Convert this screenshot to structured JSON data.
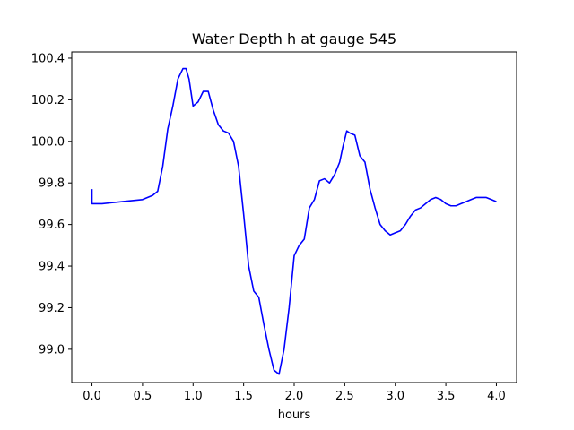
{
  "chart_data": {
    "type": "line",
    "title": "Water Depth h at gauge 545",
    "xlabel": "hours",
    "ylabel": "",
    "xlim": [
      -0.2,
      4.2
    ],
    "ylim": [
      98.84,
      100.43
    ],
    "x_ticks": [
      0.0,
      0.5,
      1.0,
      1.5,
      2.0,
      2.5,
      3.0,
      3.5,
      4.0
    ],
    "x_tick_labels": [
      "0.0",
      "0.5",
      "1.0",
      "1.5",
      "2.0",
      "2.5",
      "3.0",
      "3.5",
      "4.0"
    ],
    "y_ticks": [
      99.0,
      99.2,
      99.4,
      99.6,
      99.8,
      100.0,
      100.2,
      100.4
    ],
    "y_tick_labels": [
      "99.0",
      "99.2",
      "99.4",
      "99.6",
      "99.8",
      "100.0",
      "100.2",
      "100.4"
    ],
    "grid": false,
    "series": [
      {
        "color": "#0000ff",
        "x": [
          0.0,
          0.0,
          0.1,
          0.2,
          0.3,
          0.4,
          0.5,
          0.6,
          0.65,
          0.7,
          0.75,
          0.8,
          0.85,
          0.9,
          0.93,
          0.96,
          1.0,
          1.05,
          1.1,
          1.15,
          1.2,
          1.25,
          1.3,
          1.35,
          1.4,
          1.45,
          1.5,
          1.55,
          1.6,
          1.65,
          1.7,
          1.75,
          1.8,
          1.85,
          1.9,
          1.95,
          2.0,
          2.05,
          2.1,
          2.15,
          2.2,
          2.25,
          2.3,
          2.35,
          2.4,
          2.45,
          2.48,
          2.52,
          2.55,
          2.6,
          2.65,
          2.7,
          2.75,
          2.8,
          2.85,
          2.9,
          2.95,
          3.0,
          3.05,
          3.1,
          3.15,
          3.2,
          3.25,
          3.3,
          3.35,
          3.4,
          3.45,
          3.5,
          3.55,
          3.6,
          3.65,
          3.7,
          3.75,
          3.8,
          3.85,
          3.9,
          3.95,
          4.0
        ],
        "y": [
          99.77,
          99.7,
          99.7,
          99.705,
          99.71,
          99.715,
          99.72,
          99.74,
          99.76,
          99.88,
          100.06,
          100.17,
          100.3,
          100.35,
          100.35,
          100.3,
          100.17,
          100.19,
          100.24,
          100.24,
          100.15,
          100.08,
          100.05,
          100.04,
          100.0,
          99.88,
          99.65,
          99.4,
          99.28,
          99.25,
          99.12,
          99.0,
          98.9,
          98.88,
          99.0,
          99.2,
          99.45,
          99.5,
          99.53,
          99.68,
          99.72,
          99.81,
          99.82,
          99.8,
          99.84,
          99.9,
          99.97,
          100.05,
          100.04,
          100.03,
          99.93,
          99.9,
          99.77,
          99.68,
          99.6,
          99.57,
          99.55,
          99.56,
          99.57,
          99.6,
          99.64,
          99.67,
          99.68,
          99.7,
          99.72,
          99.73,
          99.72,
          99.7,
          99.69,
          99.69,
          99.7,
          99.71,
          99.72,
          99.73,
          99.73,
          99.73,
          99.72,
          99.71
        ]
      }
    ]
  },
  "colors": {
    "line": "#0000ff",
    "axes": "#000000",
    "background": "#ffffff"
  }
}
